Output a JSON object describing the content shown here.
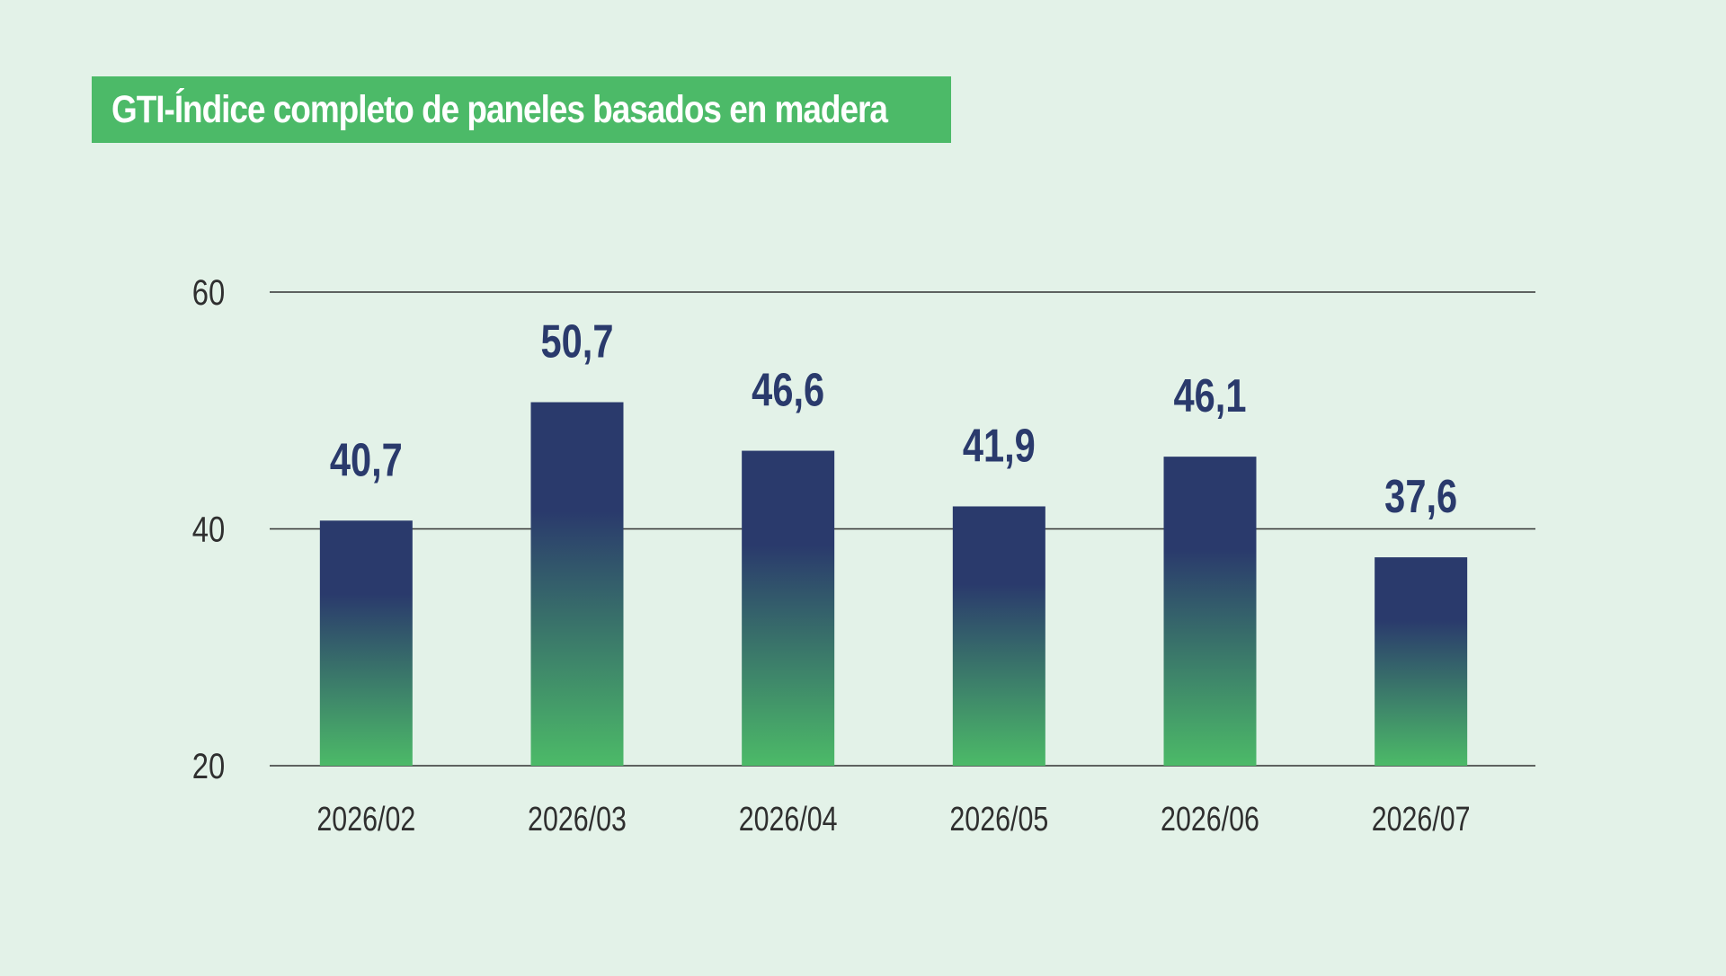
{
  "chart_data": {
    "type": "bar",
    "title": "GTI-Índice completo de paneles basados en madera",
    "categories": [
      "2026/02",
      "2026/03",
      "2026/04",
      "2026/05",
      "2026/06",
      "2026/07"
    ],
    "values": [
      40.7,
      50.7,
      46.6,
      41.9,
      46.1,
      37.6
    ],
    "value_labels": [
      "40,7",
      "50,7",
      "46,6",
      "41,9",
      "46,1",
      "37,6"
    ],
    "yticks": [
      20,
      40,
      60
    ],
    "ylim": [
      20,
      60
    ],
    "grid": true,
    "colors": {
      "background": "#e3f2e8",
      "title_bg": "#4cba68",
      "bar_top": "#2a3a6c",
      "bar_bottom": "#4cba68",
      "value_text": "#2a3a6c",
      "gridline": "#333333"
    }
  }
}
